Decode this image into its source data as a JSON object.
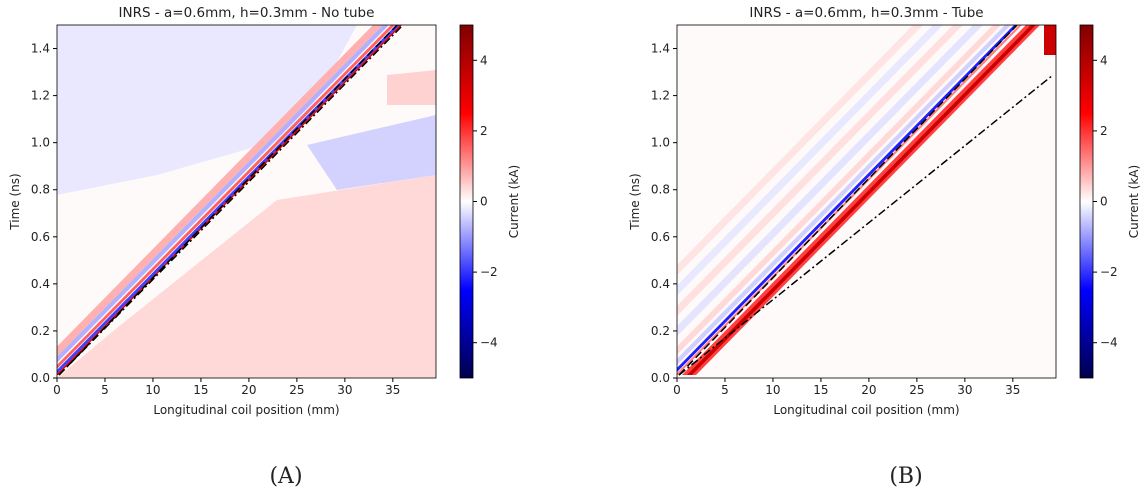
{
  "chart_data": [
    {
      "type": "heatmap",
      "title": "INRS - a=0.6mm, h=0.3mm - No tube",
      "xlabel": "Longitudinal coil position (mm)",
      "ylabel": "Time (ns)",
      "xlim": [
        0,
        39.5
      ],
      "ylim": [
        0,
        1.5
      ],
      "xticks": [
        0,
        5,
        10,
        15,
        20,
        25,
        30,
        35
      ],
      "yticks": [
        {
          "value": 0,
          "label": "0.0"
        },
        {
          "value": 0.2,
          "label": "0.2"
        },
        {
          "value": 0.4,
          "label": "0.4"
        },
        {
          "value": 0.6,
          "label": "0.6"
        },
        {
          "value": 0.8,
          "label": "0.8"
        },
        {
          "value": 1.0,
          "label": "1.0"
        },
        {
          "value": 1.2,
          "label": "1.2"
        },
        {
          "value": 1.4,
          "label": "1.4"
        }
      ],
      "colorbar": {
        "label": "Current (kA)",
        "clim": [
          -5,
          5
        ],
        "cmap": [
          "#00004c",
          "#0000ff",
          "#ffffff",
          "#ff0000",
          "#800000"
        ],
        "ticks": [
          {
            "value": -4,
            "label": "−4"
          },
          {
            "value": -2,
            "label": "−2"
          },
          0,
          2,
          4
        ]
      },
      "caption": "(A)"
    },
    {
      "type": "heatmap",
      "title": "INRS - a=0.6mm, h=0.3mm - Tube",
      "xlabel": "Longitudinal coil position (mm)",
      "ylabel": "Time (ns)",
      "xlim": [
        0,
        39.5
      ],
      "ylim": [
        0,
        1.5
      ],
      "xticks": [
        0,
        5,
        10,
        15,
        20,
        25,
        30,
        35
      ],
      "yticks": [
        {
          "value": 0,
          "label": "0.0"
        },
        {
          "value": 0.2,
          "label": "0.2"
        },
        {
          "value": 0.4,
          "label": "0.4"
        },
        {
          "value": 0.6,
          "label": "0.6"
        },
        {
          "value": 0.8,
          "label": "0.8"
        },
        {
          "value": 1.0,
          "label": "1.0"
        },
        {
          "value": 1.2,
          "label": "1.2"
        },
        {
          "value": 1.4,
          "label": "1.4"
        }
      ],
      "colorbar": {
        "label": "Current (kA)",
        "clim": [
          -5,
          5
        ],
        "cmap": [
          "#00004c",
          "#0000ff",
          "#ffffff",
          "#ff0000",
          "#800000"
        ],
        "ticks": [
          {
            "value": -4,
            "label": "−4"
          },
          {
            "value": -2,
            "label": "−2"
          },
          0,
          2,
          4
        ]
      },
      "caption": "(B)"
    }
  ]
}
